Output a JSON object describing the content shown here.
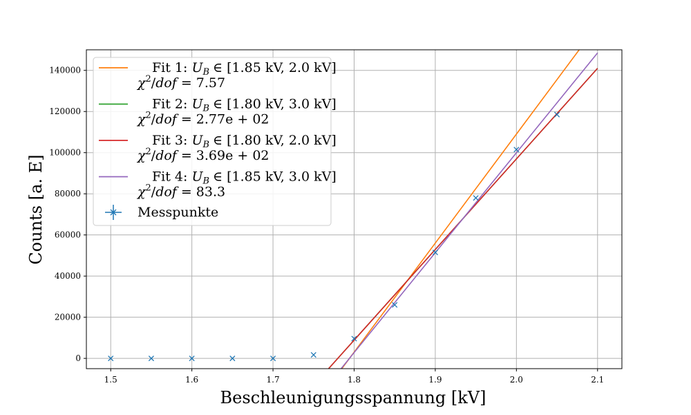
{
  "chart_data": {
    "type": "line",
    "xlabel": "Beschleunigungsspannung [kV]",
    "ylabel": "Counts [a. E]",
    "xlim": [
      1.47,
      2.13
    ],
    "ylim": [
      -5000,
      150000
    ],
    "grid": true,
    "legend_position": "top-left",
    "xticks": [
      1.5,
      1.6,
      1.7,
      1.8,
      1.9,
      2.0,
      2.1
    ],
    "xtick_labels": [
      "1.5",
      "1.6",
      "1.7",
      "1.8",
      "1.9",
      "2.0",
      "2.1"
    ],
    "yticks": [
      0,
      20000,
      40000,
      60000,
      80000,
      100000,
      120000,
      140000
    ],
    "ytick_labels": [
      "0",
      "20000",
      "40000",
      "60000",
      "80000",
      "100000",
      "120000",
      "140000"
    ],
    "series": [
      {
        "name": "Fit 1: U_B ∈ [1.85 kV, 2.0 kV]",
        "chi2_label": "χ²/dof = 7.57",
        "kind": "line",
        "color": "#ff7f0e",
        "x": [
          1.7848,
          2.1
        ],
        "y": [
          -5000,
          162000
        ]
      },
      {
        "name": "Fit 2: U_B ∈ [1.80 kV, 3.0 kV]",
        "chi2_label": "χ²/dof = 2.77e + 02",
        "kind": "line",
        "color": "#2ca02c",
        "x": [
          1.7685,
          2.1
        ],
        "y": [
          -5000,
          141000
        ]
      },
      {
        "name": "Fit 3: U_B ∈ [1.80 kV, 2.0 kV]",
        "chi2_label": "χ²/dof = 3.69e + 02",
        "kind": "line",
        "color": "#d62728",
        "x": [
          1.7685,
          2.1
        ],
        "y": [
          -5000,
          141000
        ]
      },
      {
        "name": "Fit 4: U_B ∈ [1.85 kV, 3.0 kV]",
        "chi2_label": "χ²/dof = 83.3",
        "kind": "line",
        "color": "#9467bd",
        "x": [
          1.7839,
          2.1
        ],
        "y": [
          -5000,
          148500
        ]
      },
      {
        "name": "Messpunkte",
        "kind": "scatter",
        "color": "#1f77b4",
        "x": [
          1.5,
          1.55,
          1.6,
          1.65,
          1.7,
          1.75,
          1.8,
          1.85,
          1.9,
          1.95,
          2.0,
          2.05
        ],
        "y": [
          0,
          0,
          0,
          0,
          0,
          1700,
          9600,
          26000,
          51500,
          78000,
          101500,
          118500
        ]
      }
    ]
  },
  "legend": {
    "entries": [
      {
        "fit": "Fit 1:",
        "var": "U",
        "sub": "B",
        "range": "∈ [1.85 kV, 2.0 kV]",
        "chi_value": "7.57"
      },
      {
        "fit": "Fit 2:",
        "var": "U",
        "sub": "B",
        "range": "∈ [1.80 kV, 3.0 kV]",
        "chi_value": "2.77e + 02"
      },
      {
        "fit": "Fit 3:",
        "var": "U",
        "sub": "B",
        "range": "∈ [1.80 kV, 2.0 kV]",
        "chi_value": "3.69e + 02"
      },
      {
        "fit": "Fit 4:",
        "var": "U",
        "sub": "B",
        "range": "∈ [1.85 kV, 3.0 kV]",
        "chi_value": "83.3"
      }
    ],
    "chi_symbol": "χ",
    "chi_sup": "2",
    "chi_slash": "/",
    "chi_dof": "dof",
    "chi_eq": "=",
    "scatter_label": "Messpunkte"
  }
}
